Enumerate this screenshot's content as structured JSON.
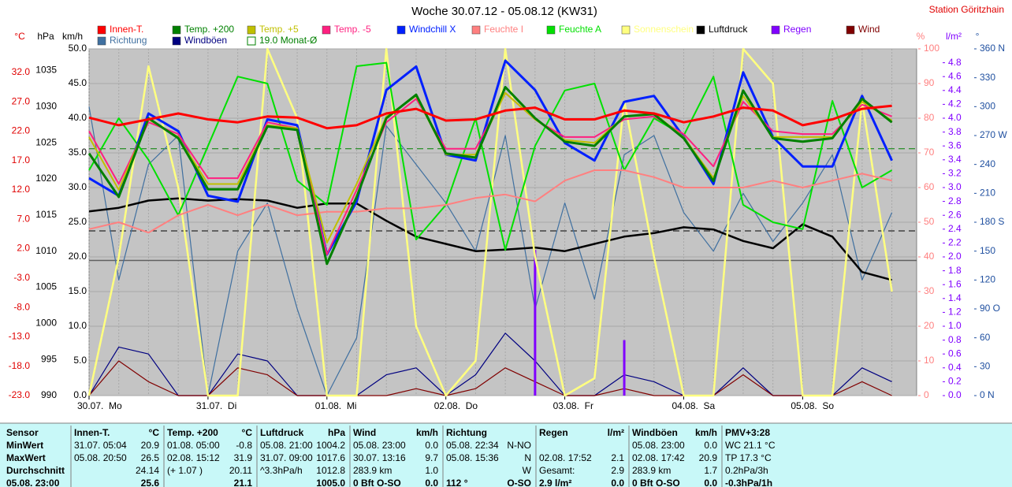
{
  "chart_data": {
    "type": "line",
    "title": "Woche 30.07.12 - 05.08.12 (KW31)",
    "station": "Station Göritzhain",
    "xlim": [
      0,
      167
    ],
    "xticks": [
      {
        "value": 0,
        "label": "30.07.  Mo"
      },
      {
        "value": 24,
        "label": "31.07.  Di"
      },
      {
        "value": 48,
        "label": "01.08.  Mi"
      },
      {
        "value": 72,
        "label": "02.08.  Do"
      },
      {
        "value": 96,
        "label": "03.08.  Fr"
      },
      {
        "value": 120,
        "label": "04.08.  Sa"
      },
      {
        "value": 144,
        "label": "05.08.  So"
      }
    ],
    "x": [
      0,
      6,
      12,
      18,
      24,
      30,
      36,
      42,
      48,
      54,
      60,
      66,
      72,
      78,
      84,
      90,
      96,
      102,
      108,
      114,
      120,
      126,
      132,
      138,
      144,
      150,
      156,
      162
    ],
    "grid": true,
    "axes": [
      {
        "unit": "°C",
        "color": "#e00000",
        "lim": [
          -23,
          36
        ],
        "ticks": [
          {
            "value": -23,
            "label": "-23.0"
          },
          {
            "value": -18,
            "label": "-18.0"
          },
          {
            "value": -13,
            "label": "-13.0"
          },
          {
            "value": -8,
            "label": "-8.0"
          },
          {
            "value": -3,
            "label": "-3.0"
          },
          {
            "value": 2,
            "label": "2.0"
          },
          {
            "value": 7,
            "label": "7.0"
          },
          {
            "value": 12,
            "label": "12.0"
          },
          {
            "value": 17,
            "label": "17.0"
          },
          {
            "value": 22,
            "label": "22.0"
          },
          {
            "value": 27,
            "label": "27.0"
          },
          {
            "value": 32,
            "label": "32.0"
          }
        ]
      },
      {
        "unit": "hPa",
        "color": "#000000",
        "lim": [
          990,
          1038
        ],
        "ticks": [
          990,
          995,
          1000,
          1005,
          1010,
          1015,
          1020,
          1025,
          1030,
          1035
        ]
      },
      {
        "unit": "km/h",
        "color": "#000000",
        "lim": [
          0,
          50
        ],
        "ticks": [
          {
            "value": 0,
            "label": "0.0"
          },
          {
            "value": 5,
            "label": "5.0"
          },
          {
            "value": 10,
            "label": "10.0"
          },
          {
            "value": 15,
            "label": "15.0"
          },
          {
            "value": 20,
            "label": "20.0"
          },
          {
            "value": 25,
            "label": "25.0"
          },
          {
            "value": 30,
            "label": "30.0"
          },
          {
            "value": 35,
            "label": "35.0"
          },
          {
            "value": 40,
            "label": "40.0"
          },
          {
            "value": 45,
            "label": "45.0"
          },
          {
            "value": 50,
            "label": "50.0"
          }
        ]
      },
      {
        "unit": "%",
        "color": "#ff8080",
        "lim": [
          0,
          100
        ],
        "ticks": [
          0,
          10,
          20,
          30,
          40,
          50,
          60,
          70,
          80,
          90,
          100
        ]
      },
      {
        "unit": "l/m²",
        "color": "#8000ff",
        "lim": [
          0,
          5
        ],
        "ticks": [
          {
            "value": 0,
            "label": "0.0"
          },
          {
            "value": 0.2,
            "label": "0.2"
          },
          {
            "value": 0.4,
            "label": "0.4"
          },
          {
            "value": 0.6,
            "label": "0.6"
          },
          {
            "value": 0.8,
            "label": "0.8"
          },
          {
            "value": 1,
            "label": "1.0"
          },
          {
            "value": 1.2,
            "label": "1.2"
          },
          {
            "value": 1.4,
            "label": "1.4"
          },
          {
            "value": 1.6,
            "label": "1.6"
          },
          {
            "value": 1.8,
            "label": "1.8"
          },
          {
            "value": 2,
            "label": "2.0"
          },
          {
            "value": 2.2,
            "label": "2.2"
          },
          {
            "value": 2.4,
            "label": "2.4"
          },
          {
            "value": 2.6,
            "label": "2.6"
          },
          {
            "value": 2.8,
            "label": "2.8"
          },
          {
            "value": 3,
            "label": "3.0"
          },
          {
            "value": 3.2,
            "label": "3.2"
          },
          {
            "value": 3.4,
            "label": "3.4"
          },
          {
            "value": 3.6,
            "label": "3.6"
          },
          {
            "value": 3.8,
            "label": "3.8"
          },
          {
            "value": 4,
            "label": "4.0"
          },
          {
            "value": 4.2,
            "label": "4.2"
          },
          {
            "value": 4.4,
            "label": "4.4"
          },
          {
            "value": 4.6,
            "label": "4.6"
          },
          {
            "value": 4.8,
            "label": "4.8"
          }
        ]
      },
      {
        "unit": "°",
        "color": "#2050a0",
        "lim": [
          0,
          360
        ],
        "ticks": [
          {
            "value": 0,
            "label": "0 N"
          },
          30,
          60,
          {
            "value": 90,
            "label": "90 O"
          },
          120,
          150,
          {
            "value": 180,
            "label": "180 S"
          },
          210,
          240,
          {
            "value": 270,
            "label": "270 W"
          },
          300,
          330,
          {
            "value": 360,
            "label": "360 N"
          }
        ]
      }
    ],
    "series": [
      {
        "name": "Innen-T.",
        "color": "#ff0000",
        "axis": 0,
        "values": [
          24.3,
          23.0,
          24.0,
          25.0,
          24.0,
          23.5,
          24.5,
          24.3,
          22.5,
          23.0,
          25.0,
          25.8,
          23.8,
          24.0,
          25.5,
          26.0,
          24.0,
          24.0,
          25.5,
          25.0,
          23.5,
          24.5,
          26.0,
          25.5,
          23.0,
          24.0,
          25.8,
          26.3
        ]
      },
      {
        "name": "Temp. +200",
        "color": "#008000",
        "axis": 0,
        "values": [
          18.2,
          10.8,
          24.2,
          20.8,
          12.1,
          12.1,
          22.8,
          22.2,
          -0.6,
          10.8,
          24.2,
          28.2,
          18.2,
          17.5,
          29.5,
          24.2,
          20.2,
          19.5,
          24.5,
          24.9,
          20.8,
          13.5,
          28.9,
          20.8,
          20.2,
          20.8,
          27.5,
          23.5
        ]
      },
      {
        "name": "Temp. +5",
        "color": "#c0c000",
        "axis": 0,
        "values": [
          21,
          12,
          24,
          21,
          13,
          13,
          23,
          22.5,
          3,
          13,
          24.5,
          28,
          18,
          18,
          28.5,
          24,
          20.5,
          20,
          24.5,
          25,
          21,
          14,
          28,
          21,
          21,
          21,
          27,
          23.8
        ]
      },
      {
        "name": "Temp. -5",
        "color": "#ff2080",
        "axis": 0,
        "values": [
          22,
          13,
          23.5,
          21.5,
          14,
          14,
          23.5,
          22.5,
          1,
          12,
          23.5,
          27.5,
          19,
          19,
          28.5,
          24,
          21,
          21,
          24,
          24.5,
          21.5,
          16,
          27,
          22,
          21.5,
          21.5,
          26.5,
          24.5
        ]
      },
      {
        "name": "Windchill X",
        "color": "#0020ff",
        "axis": 0,
        "values": [
          14,
          11,
          25,
          22,
          11,
          10,
          24,
          23,
          1,
          10,
          29,
          33,
          18,
          17,
          34,
          29,
          20,
          17,
          27,
          28,
          21,
          13,
          32,
          21,
          16,
          16,
          28,
          17
        ]
      },
      {
        "name": "Feuchte I",
        "color": "#ff8080",
        "axis": 3,
        "values": [
          48,
          50,
          47,
          52,
          55,
          52,
          55,
          52,
          53,
          53,
          54,
          54,
          55,
          57,
          58,
          56,
          62,
          65,
          65,
          63,
          60,
          60,
          60,
          62,
          60,
          62,
          64,
          62
        ]
      },
      {
        "name": "Feuchte A",
        "color": "#00e000",
        "axis": 3,
        "values": [
          65,
          80,
          68,
          52,
          72,
          92,
          90,
          62,
          55,
          95,
          96,
          45,
          55,
          80,
          42,
          72,
          88,
          90,
          65,
          80,
          75,
          92,
          55,
          50,
          48,
          85,
          60,
          65
        ]
      },
      {
        "name": "Sonnenschein",
        "color": "#ffff80",
        "axis": 3,
        "values": [
          0,
          40,
          95,
          60,
          0,
          0,
          100,
          80,
          0,
          0,
          100,
          20,
          0,
          10,
          100,
          40,
          0,
          5,
          85,
          40,
          0,
          0,
          100,
          90,
          0,
          0,
          85,
          30
        ]
      },
      {
        "name": "Luftdruck",
        "color": "#000000",
        "axis": 1,
        "values": [
          1015.5,
          1016,
          1017,
          1017.3,
          1017,
          1017.2,
          1017,
          1016,
          1016.6,
          1016.6,
          1014.2,
          1012,
          1011,
          1010,
          1010.2,
          1010.5,
          1010,
          1011,
          1012,
          1012.5,
          1013.3,
          1013,
          1011.4,
          1010.4,
          1013.7,
          1012,
          1007.1,
          1006
        ]
      },
      {
        "name": "Regen",
        "color": "#8000ff",
        "axis": 4,
        "kind": "bar",
        "values": [
          0,
          0,
          0,
          0,
          0,
          0,
          0,
          0,
          0,
          0,
          0,
          0,
          0,
          0,
          0,
          2.1,
          0,
          0,
          0.8,
          0,
          0,
          0,
          0,
          0,
          0,
          0,
          0,
          0
        ]
      },
      {
        "name": "Wind",
        "color": "#800000",
        "axis": 2,
        "values": [
          0,
          5,
          2,
          0,
          0,
          4,
          3,
          0,
          0,
          0,
          0,
          1,
          0,
          1,
          4,
          2,
          0,
          0,
          1,
          0,
          0,
          0,
          3,
          0,
          0,
          0,
          2,
          0
        ]
      },
      {
        "name": "Richtung",
        "color": "#4070a0",
        "axis": 5,
        "values": [
          300,
          120,
          240,
          270,
          0,
          150,
          200,
          90,
          0,
          60,
          280,
          240,
          200,
          150,
          270,
          90,
          200,
          100,
          250,
          270,
          190,
          150,
          210,
          160,
          200,
          250,
          120,
          190
        ]
      },
      {
        "name": "Windböen",
        "color": "#000080",
        "axis": 2,
        "values": [
          0,
          7,
          6,
          0,
          0,
          6,
          5,
          0,
          0,
          0,
          3,
          4,
          0,
          3,
          9,
          5,
          0,
          0,
          3,
          2,
          0,
          0,
          4,
          0,
          0,
          0,
          4,
          2
        ]
      }
    ],
    "monthly_average": {
      "value": 19.0,
      "label": "19.0 Monat-Ø",
      "color": "#008000",
      "axis": 0
    }
  },
  "table": {
    "labels": [
      "Sensor",
      "MinWert",
      "MaxWert",
      "Durchschnitt",
      "05.08. 23:00"
    ],
    "columns": [
      {
        "header": "Innen-T.",
        "unit": "°C",
        "rows": [
          [
            "31.07. 05:04",
            "20.9"
          ],
          [
            "05.08. 20:50",
            "26.5"
          ],
          [
            "24.14"
          ],
          [
            "25.6"
          ]
        ]
      },
      {
        "header": "Temp. +200",
        "unit": "°C",
        "rows": [
          [
            "01.08. 05:00",
            "-0.8"
          ],
          [
            "02.08. 15:12",
            "31.9"
          ],
          [
            "(+ 1.07 )",
            "20.11"
          ],
          [
            "21.1"
          ]
        ]
      },
      {
        "header": "Luftdruck",
        "unit": "hPa",
        "rows": [
          [
            "05.08. 21:00",
            "1004.2"
          ],
          [
            "31.07. 09:00",
            "1017.6"
          ],
          [
            "^3.3hPa/h",
            "1012.8"
          ],
          [
            "1005.0"
          ]
        ]
      },
      {
        "header": "Wind",
        "unit": "km/h",
        "rows": [
          [
            "05.08. 23:00",
            "0.0"
          ],
          [
            "30.07. 13:16",
            "9.7"
          ],
          [
            "283.9 km",
            "1.0"
          ],
          [
            "0 Bft O-SO",
            "0.0"
          ]
        ]
      },
      {
        "header": "Richtung",
        "rows": [
          [
            "05.08. 22:34",
            "N-NO"
          ],
          [
            "05.08. 15:36",
            "N"
          ],
          [
            "W"
          ],
          [
            "112 °",
            "O-SO"
          ]
        ]
      },
      {
        "header": "Regen",
        "unit": "l/m²",
        "rows": [
          [],
          [
            "02.08. 17:52",
            "2.1"
          ],
          [
            "Gesamt:",
            "2.9"
          ],
          [
            "2.9 l/m²",
            "0.0"
          ]
        ]
      },
      {
        "header": "Windböen",
        "unit": "km/h",
        "rows": [
          [
            "05.08. 23:00",
            "0.0"
          ],
          [
            "02.08. 17:42",
            "20.9"
          ],
          [
            "283.9 km",
            "1.7"
          ],
          [
            "0 Bft O-SO",
            "0.0"
          ]
        ]
      },
      {
        "header": "PMV+3:28",
        "rows": [
          [
            "WC 21.1 °C"
          ],
          [
            "TP 17.3 °C"
          ],
          [
            "0.2hPa/3h"
          ],
          [
            "-0.3hPa/1h"
          ]
        ]
      }
    ]
  }
}
